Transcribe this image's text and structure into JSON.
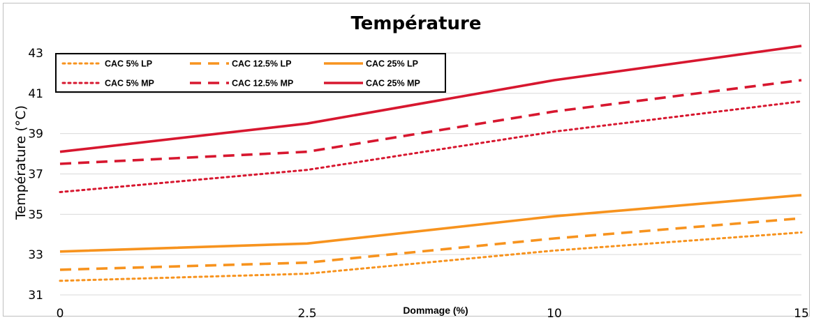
{
  "chart_data": {
    "type": "line",
    "title": "Température",
    "xlabel": "Dommage (%)",
    "ylabel": "Température (°C)",
    "categories": [
      "0",
      "2.5",
      "10",
      "15"
    ],
    "ylim": [
      31,
      43
    ],
    "yticks": [
      31,
      33,
      35,
      37,
      39,
      41,
      43
    ],
    "grid": true,
    "legend_position": "top-left",
    "series": [
      {
        "name": "CAC 5% LP",
        "values": [
          31.7,
          32.05,
          33.2,
          34.1
        ],
        "color": "#F7931E",
        "style": "dotted"
      },
      {
        "name": "CAC 12.5% LP",
        "values": [
          32.25,
          32.6,
          33.8,
          34.8
        ],
        "color": "#F7931E",
        "style": "dashed"
      },
      {
        "name": "CAC 25% LP",
        "values": [
          33.15,
          33.55,
          34.9,
          35.95
        ],
        "color": "#F7931E",
        "style": "solid"
      },
      {
        "name": "CAC 5% MP",
        "values": [
          36.1,
          37.2,
          39.1,
          40.6
        ],
        "color": "#D7172F",
        "style": "dotted"
      },
      {
        "name": "CAC 12.5% MP",
        "values": [
          37.5,
          38.1,
          40.1,
          41.65
        ],
        "color": "#D7172F",
        "style": "dashed"
      },
      {
        "name": "CAC 25% MP",
        "values": [
          38.1,
          39.5,
          41.65,
          43.35
        ],
        "color": "#D7172F",
        "style": "solid"
      }
    ]
  }
}
